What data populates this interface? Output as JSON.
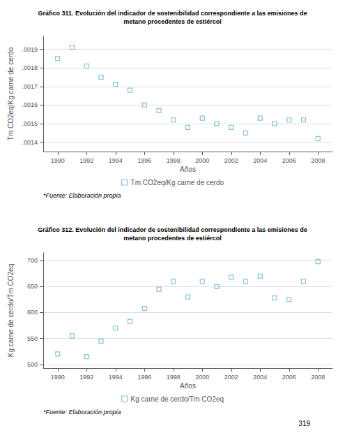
{
  "chart_data": [
    {
      "type": "scatter",
      "title": "Gráfico 311. Evolución del indicador de sostenibilidad correspondiente a las emisiones de\nmetano procedentes de estiércol",
      "xlabel": "Años",
      "ylabel": "Tm CO2eq/Kg carne de cerdo",
      "x": [
        1990,
        1991,
        1992,
        1993,
        1994,
        1995,
        1996,
        1997,
        1998,
        1999,
        2000,
        2001,
        2002,
        2003,
        2004,
        2005,
        2006,
        2007,
        2008
      ],
      "series": [
        {
          "name": "Tm CO2eq/Kg carne de cerdo",
          "color": "#6baed6",
          "marker": "square",
          "values": [
            0.00185,
            0.00191,
            0.00181,
            0.00175,
            0.00171,
            0.00168,
            0.0016,
            0.00157,
            0.00152,
            0.00148,
            0.00153,
            0.0015,
            0.00148,
            0.00145,
            0.00153,
            0.0015,
            0.00152,
            0.00152,
            0.00142
          ]
        }
      ],
      "xlim": [
        1989.0,
        2009.0
      ],
      "xticks": [
        1990,
        1992,
        1994,
        1996,
        1998,
        2000,
        2002,
        2004,
        2006,
        2008
      ],
      "ylim": [
        0.00135,
        0.00197
      ],
      "yticks": [
        {
          "value": 0.0014,
          "label": ".0014"
        },
        {
          "value": 0.0015,
          "label": ".0015"
        },
        {
          "value": 0.0016,
          "label": ".0016"
        },
        {
          "value": 0.0017,
          "label": ".0017"
        },
        {
          "value": 0.0018,
          "label": ".0018"
        },
        {
          "value": 0.0019,
          "label": ".0019"
        }
      ],
      "grid": true,
      "annotations": [
        "*Fuente: Elaboración propia"
      ]
    },
    {
      "type": "scatter",
      "title": "Gráfico 312. Evolución del indicador de sostenibilidad correspondiente a las emisiones de\nmetano procedentes de estiércol",
      "xlabel": "Años",
      "ylabel": "Kg carne de cerdo/Tm CO2eq",
      "x": [
        1990,
        1991,
        1992,
        1993,
        1994,
        1995,
        1996,
        1997,
        1998,
        1999,
        2000,
        2001,
        2002,
        2003,
        2004,
        2005,
        2006,
        2007,
        2008
      ],
      "series": [
        {
          "name": "Kg carne de cerdo/Tm CO2eq",
          "color": "#6baed6",
          "marker": "square",
          "values": [
            520,
            555,
            515,
            545,
            570,
            583,
            608,
            645,
            660,
            630,
            660,
            650,
            668,
            660,
            670,
            628,
            625,
            660,
            698
          ]
        }
      ],
      "xlim": [
        1989.0,
        2009.0
      ],
      "xticks": [
        1990,
        1992,
        1994,
        1996,
        1998,
        2000,
        2002,
        2004,
        2006,
        2008
      ],
      "ylim": [
        493,
        715
      ],
      "yticks": [
        500,
        550,
        600,
        650,
        700
      ],
      "grid": true,
      "annotations": [
        "*Fuente: Elaboración propia",
        "319"
      ]
    }
  ]
}
